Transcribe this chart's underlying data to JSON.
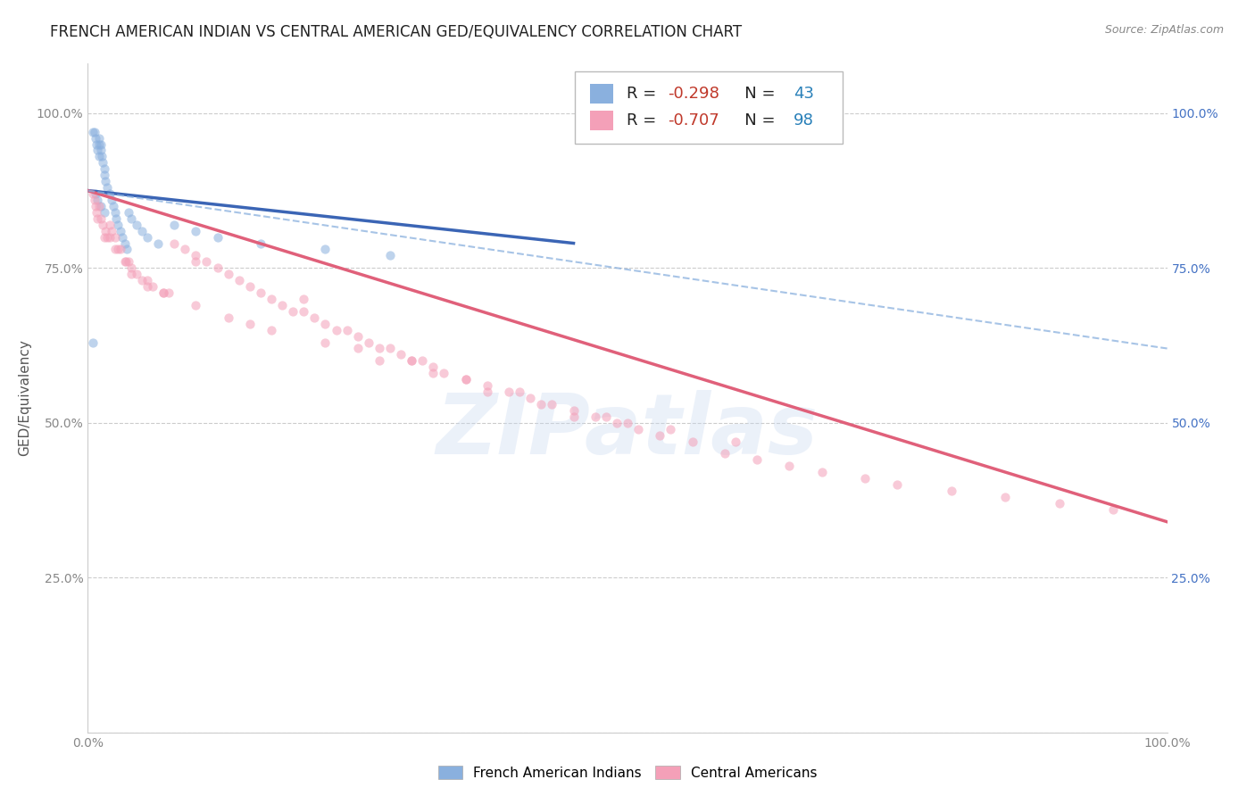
{
  "title": "FRENCH AMERICAN INDIAN VS CENTRAL AMERICAN GED/EQUIVALENCY CORRELATION CHART",
  "source": "Source: ZipAtlas.com",
  "ylabel": "GED/Equivalency",
  "watermark": "ZIPatlas",
  "blue_R": -0.298,
  "blue_N": 43,
  "pink_R": -0.707,
  "pink_N": 98,
  "blue_color": "#8ab0de",
  "pink_color": "#f4a0b8",
  "blue_line_color": "#3b65b5",
  "pink_line_color": "#e0607a",
  "dashed_line_color": "#8ab0de",
  "xlim": [
    0.0,
    1.0
  ],
  "ylim": [
    0.0,
    1.08
  ],
  "blue_scatter_x": [
    0.005,
    0.006,
    0.007,
    0.008,
    0.009,
    0.01,
    0.01,
    0.01,
    0.012,
    0.012,
    0.013,
    0.014,
    0.015,
    0.015,
    0.016,
    0.018,
    0.02,
    0.022,
    0.024,
    0.025,
    0.026,
    0.028,
    0.03,
    0.032,
    0.034,
    0.036,
    0.038,
    0.04,
    0.045,
    0.05,
    0.055,
    0.065,
    0.08,
    0.1,
    0.12,
    0.16,
    0.22,
    0.28,
    0.005,
    0.007,
    0.009,
    0.012,
    0.015
  ],
  "blue_scatter_y": [
    0.97,
    0.97,
    0.96,
    0.95,
    0.94,
    0.96,
    0.95,
    0.93,
    0.95,
    0.94,
    0.93,
    0.92,
    0.91,
    0.9,
    0.89,
    0.88,
    0.87,
    0.86,
    0.85,
    0.84,
    0.83,
    0.82,
    0.81,
    0.8,
    0.79,
    0.78,
    0.84,
    0.83,
    0.82,
    0.81,
    0.8,
    0.79,
    0.82,
    0.81,
    0.8,
    0.79,
    0.78,
    0.77,
    0.63,
    0.87,
    0.86,
    0.85,
    0.84
  ],
  "pink_scatter_x": [
    0.005,
    0.006,
    0.007,
    0.008,
    0.009,
    0.01,
    0.012,
    0.014,
    0.016,
    0.018,
    0.02,
    0.022,
    0.025,
    0.028,
    0.03,
    0.034,
    0.038,
    0.04,
    0.045,
    0.05,
    0.055,
    0.06,
    0.07,
    0.08,
    0.09,
    0.1,
    0.11,
    0.12,
    0.13,
    0.14,
    0.15,
    0.16,
    0.17,
    0.18,
    0.19,
    0.2,
    0.21,
    0.22,
    0.23,
    0.24,
    0.25,
    0.26,
    0.27,
    0.28,
    0.29,
    0.3,
    0.31,
    0.32,
    0.33,
    0.35,
    0.37,
    0.39,
    0.41,
    0.43,
    0.45,
    0.47,
    0.49,
    0.51,
    0.53,
    0.56,
    0.59,
    0.62,
    0.65,
    0.68,
    0.72,
    0.75,
    0.8,
    0.85,
    0.9,
    0.95,
    0.015,
    0.025,
    0.035,
    0.055,
    0.075,
    0.1,
    0.13,
    0.17,
    0.22,
    0.27,
    0.32,
    0.37,
    0.42,
    0.48,
    0.54,
    0.6,
    0.5,
    0.4,
    0.3,
    0.2,
    0.1,
    0.07,
    0.04,
    0.02,
    0.15,
    0.25,
    0.35,
    0.45
  ],
  "pink_scatter_y": [
    0.87,
    0.86,
    0.85,
    0.84,
    0.83,
    0.85,
    0.83,
    0.82,
    0.81,
    0.8,
    0.82,
    0.81,
    0.8,
    0.78,
    0.78,
    0.76,
    0.76,
    0.75,
    0.74,
    0.73,
    0.72,
    0.72,
    0.71,
    0.79,
    0.78,
    0.77,
    0.76,
    0.75,
    0.74,
    0.73,
    0.72,
    0.71,
    0.7,
    0.69,
    0.68,
    0.68,
    0.67,
    0.66,
    0.65,
    0.65,
    0.64,
    0.63,
    0.62,
    0.62,
    0.61,
    0.6,
    0.6,
    0.59,
    0.58,
    0.57,
    0.56,
    0.55,
    0.54,
    0.53,
    0.52,
    0.51,
    0.5,
    0.49,
    0.48,
    0.47,
    0.45,
    0.44,
    0.43,
    0.42,
    0.41,
    0.4,
    0.39,
    0.38,
    0.37,
    0.36,
    0.8,
    0.78,
    0.76,
    0.73,
    0.71,
    0.69,
    0.67,
    0.65,
    0.63,
    0.6,
    0.58,
    0.55,
    0.53,
    0.51,
    0.49,
    0.47,
    0.5,
    0.55,
    0.6,
    0.7,
    0.76,
    0.71,
    0.74,
    0.8,
    0.66,
    0.62,
    0.57,
    0.51
  ],
  "blue_line_x": [
    0.0,
    0.45
  ],
  "blue_line_y": [
    0.875,
    0.79
  ],
  "pink_line_x": [
    0.0,
    1.0
  ],
  "pink_line_y": [
    0.875,
    0.34
  ],
  "dashed_line_x": [
    0.0,
    1.0
  ],
  "dashed_line_y": [
    0.875,
    0.62
  ],
  "yticks": [
    0.0,
    0.25,
    0.5,
    0.75,
    1.0
  ],
  "left_ytick_labels": [
    "",
    "25.0%",
    "50.0%",
    "75.0%",
    "100.0%"
  ],
  "right_ytick_labels": [
    "",
    "25.0%",
    "50.0%",
    "75.0%",
    "100.0%"
  ],
  "xticks": [
    0.0,
    0.1,
    0.2,
    0.3,
    0.4,
    0.5,
    0.6,
    0.7,
    0.8,
    0.9,
    1.0
  ],
  "xtick_labels": [
    "0.0%",
    "",
    "",
    "",
    "",
    "",
    "",
    "",
    "",
    "",
    "100.0%"
  ],
  "grid_color": "#cccccc",
  "title_fontsize": 12,
  "axis_label_fontsize": 11,
  "tick_fontsize": 10,
  "source_fontsize": 9,
  "legend_fontsize": 13,
  "scatter_size": 55,
  "scatter_alpha": 0.55,
  "background_color": "#ffffff",
  "legend_R_color": "#c0392b",
  "legend_N_color": "#2980b9"
}
